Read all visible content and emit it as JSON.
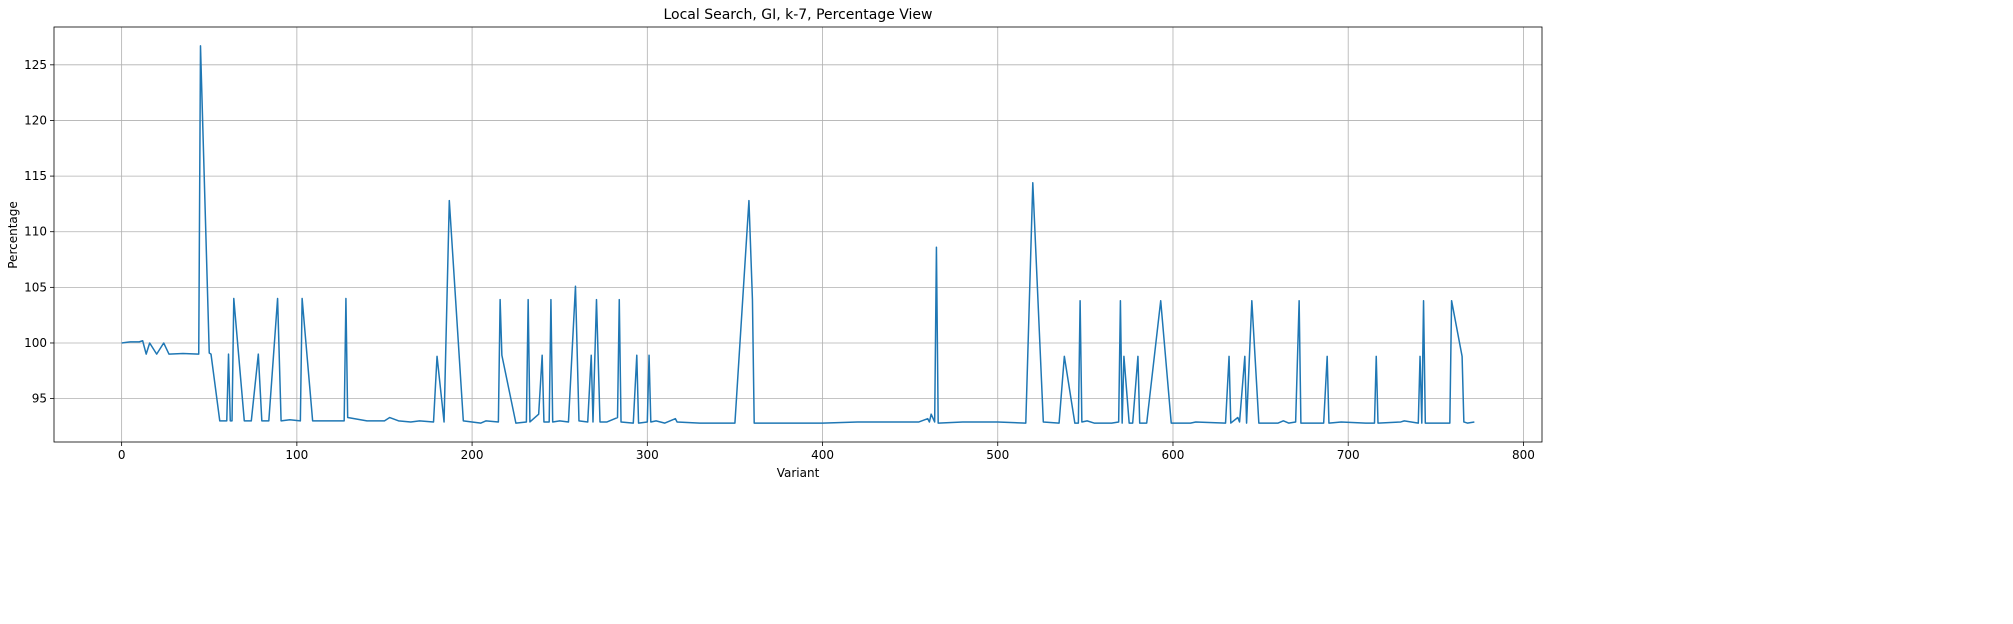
{
  "chart_data": {
    "type": "line",
    "title": "Local Search, GI, k-7, Percentage View",
    "x_label": "Variant",
    "y_label": "Percentage",
    "xlim": [
      -38.6,
      810.6
    ],
    "ylim": [
      91.1,
      128.4
    ],
    "xticks": [
      0,
      100,
      200,
      300,
      400,
      500,
      600,
      700,
      800
    ],
    "yticks": [
      95,
      100,
      105,
      110,
      115,
      120,
      125
    ],
    "grid": true,
    "x": [
      0,
      5,
      10,
      12,
      14,
      16,
      20,
      24,
      27,
      35,
      44,
      45,
      50,
      51,
      56,
      60,
      61,
      62,
      63,
      64,
      70,
      74,
      78,
      80,
      84,
      89,
      91,
      96,
      102,
      103,
      109,
      115,
      127,
      128,
      129,
      140,
      150,
      153,
      158,
      165,
      170,
      178,
      180,
      184,
      187,
      195,
      205,
      208,
      215,
      216,
      217,
      225,
      231,
      232,
      233,
      238,
      240,
      241,
      244,
      245,
      246,
      250,
      255,
      259,
      261,
      266,
      268,
      269,
      271,
      273,
      277,
      283,
      284,
      285,
      292,
      294,
      295,
      300,
      301,
      302,
      305,
      310,
      316,
      317,
      330,
      350,
      358,
      360,
      361,
      380,
      400,
      420,
      455,
      460,
      461,
      462,
      464,
      465,
      466,
      480,
      500,
      516,
      520,
      526,
      535,
      538,
      544,
      546,
      547,
      548,
      551,
      555,
      565,
      569,
      570,
      571,
      572,
      575,
      577,
      580,
      581,
      585,
      593,
      599,
      610,
      613,
      630,
      632,
      633,
      637,
      638,
      641,
      642,
      645,
      649,
      660,
      663,
      666,
      670,
      672,
      673,
      686,
      688,
      689,
      696,
      710,
      715,
      716,
      717,
      730,
      732,
      740,
      741,
      742,
      743,
      744,
      758,
      759,
      765,
      766,
      768,
      772
    ],
    "series": [
      {
        "name": "Percentage",
        "color": "#1f77b4",
        "values": [
          100,
          100.1,
          100.1,
          100.2,
          99,
          100,
          99,
          100,
          99,
          99.05,
          99,
          126.7,
          99.1,
          99,
          93,
          93,
          99,
          93,
          93,
          104,
          93,
          93,
          99,
          93,
          93,
          104,
          93,
          93.1,
          93,
          104,
          93,
          93,
          93,
          104,
          93.3,
          93,
          93,
          93.3,
          93,
          92.9,
          93,
          92.9,
          98.8,
          92.9,
          112.8,
          93,
          92.8,
          93,
          92.9,
          103.9,
          98.9,
          92.8,
          92.9,
          103.9,
          92.9,
          93.6,
          98.9,
          92.9,
          92.9,
          103.9,
          92.9,
          93,
          92.9,
          105.1,
          93,
          92.9,
          98.9,
          92.9,
          103.9,
          92.9,
          92.9,
          93.3,
          103.9,
          92.9,
          92.8,
          98.9,
          92.8,
          92.9,
          98.9,
          92.9,
          93,
          92.8,
          93.2,
          92.9,
          92.8,
          92.8,
          112.8,
          103.9,
          92.8,
          92.8,
          92.8,
          92.9,
          92.9,
          93.2,
          92.9,
          93.6,
          92.9,
          108.6,
          92.8,
          92.9,
          92.9,
          92.8,
          114.4,
          92.9,
          92.8,
          98.8,
          92.8,
          92.8,
          103.8,
          92.9,
          93,
          92.8,
          92.8,
          92.9,
          103.8,
          92.8,
          98.8,
          92.8,
          92.8,
          98.8,
          92.8,
          92.8,
          103.8,
          92.8,
          92.8,
          92.9,
          92.8,
          98.8,
          92.8,
          93.3,
          92.9,
          98.8,
          92.8,
          103.8,
          92.8,
          92.8,
          93,
          92.8,
          92.9,
          103.8,
          92.8,
          92.8,
          98.8,
          92.8,
          92.9,
          92.8,
          92.8,
          98.8,
          92.8,
          92.9,
          93,
          92.8,
          98.8,
          92.8,
          103.8,
          92.8,
          92.8,
          103.8,
          98.8,
          92.9,
          92.8,
          92.9
        ]
      }
    ]
  }
}
